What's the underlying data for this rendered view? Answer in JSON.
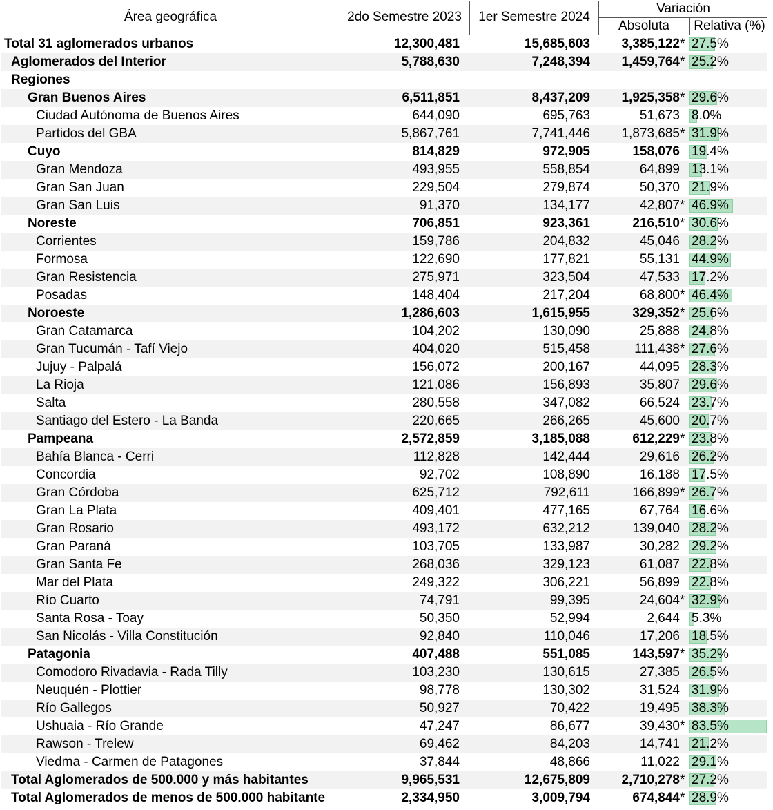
{
  "header": {
    "area": "Área geográfica",
    "col1": "2do Semestre 2023",
    "col2": "1er Semestre 2024",
    "variacion": "Variación",
    "absoluta": "Absoluta",
    "relativa": "Relativa (%)"
  },
  "rows": [
    {
      "name": "Total 31 aglomerados urbanos",
      "v1": "12,300,481",
      "v2": "15,685,603",
      "abs": "3,385,122",
      "star": "*",
      "rel": "27.5%",
      "pct": 27.5,
      "bold": true,
      "indent": 0
    },
    {
      "name": "Aglomerados del Interior",
      "v1": "5,788,630",
      "v2": "7,248,394",
      "abs": "1,459,764",
      "star": "*",
      "rel": "25.2%",
      "pct": 25.2,
      "bold": true,
      "indent": 1
    },
    {
      "name": "Regiones",
      "v1": "",
      "v2": "",
      "abs": "",
      "star": "",
      "rel": "",
      "pct": 0,
      "bold": true,
      "indent": 1
    },
    {
      "name": "Gran Buenos Aires",
      "v1": "6,511,851",
      "v2": "8,437,209",
      "abs": "1,925,358",
      "star": "*",
      "rel": "29.6%",
      "pct": 29.6,
      "bold": true,
      "indent": 2
    },
    {
      "name": "Ciudad Autónoma de Buenos Aires",
      "v1": "644,090",
      "v2": "695,763",
      "abs": "51,673",
      "star": "",
      "rel": "8.0%",
      "pct": 8.0,
      "bold": false,
      "indent": 3
    },
    {
      "name": "Partidos del GBA",
      "v1": "5,867,761",
      "v2": "7,741,446",
      "abs": "1,873,685",
      "star": "*",
      "rel": "31.9%",
      "pct": 31.9,
      "bold": false,
      "indent": 3
    },
    {
      "name": "Cuyo",
      "v1": "814,829",
      "v2": "972,905",
      "abs": "158,076",
      "star": "",
      "rel": "19.4%",
      "pct": 19.4,
      "bold": true,
      "indent": 2
    },
    {
      "name": "Gran Mendoza",
      "v1": "493,955",
      "v2": "558,854",
      "abs": "64,899",
      "star": "",
      "rel": "13.1%",
      "pct": 13.1,
      "bold": false,
      "indent": 3
    },
    {
      "name": "Gran San Juan",
      "v1": "229,504",
      "v2": "279,874",
      "abs": "50,370",
      "star": "",
      "rel": "21.9%",
      "pct": 21.9,
      "bold": false,
      "indent": 3
    },
    {
      "name": "Gran San Luis",
      "v1": "91,370",
      "v2": "134,177",
      "abs": "42,807",
      "star": "*",
      "rel": "46.9%",
      "pct": 46.9,
      "bold": false,
      "indent": 3
    },
    {
      "name": "Noreste",
      "v1": "706,851",
      "v2": "923,361",
      "abs": "216,510",
      "star": "*",
      "rel": "30.6%",
      "pct": 30.6,
      "bold": true,
      "indent": 2
    },
    {
      "name": "Corrientes",
      "v1": "159,786",
      "v2": "204,832",
      "abs": "45,046",
      "star": "",
      "rel": "28.2%",
      "pct": 28.2,
      "bold": false,
      "indent": 3
    },
    {
      "name": "Formosa",
      "v1": "122,690",
      "v2": "177,821",
      "abs": "55,131",
      "star": "",
      "rel": "44.9%",
      "pct": 44.9,
      "bold": false,
      "indent": 3
    },
    {
      "name": "Gran Resistencia",
      "v1": "275,971",
      "v2": "323,504",
      "abs": "47,533",
      "star": "",
      "rel": "17.2%",
      "pct": 17.2,
      "bold": false,
      "indent": 3
    },
    {
      "name": "Posadas",
      "v1": "148,404",
      "v2": "217,204",
      "abs": "68,800",
      "star": "*",
      "rel": "46.4%",
      "pct": 46.4,
      "bold": false,
      "indent": 3
    },
    {
      "name": "Noroeste",
      "v1": "1,286,603",
      "v2": "1,615,955",
      "abs": "329,352",
      "star": "*",
      "rel": "25.6%",
      "pct": 25.6,
      "bold": true,
      "indent": 2
    },
    {
      "name": "Gran Catamarca",
      "v1": "104,202",
      "v2": "130,090",
      "abs": "25,888",
      "star": "",
      "rel": "24.8%",
      "pct": 24.8,
      "bold": false,
      "indent": 3
    },
    {
      "name": "Gran Tucumán - Tafí Viejo",
      "v1": "404,020",
      "v2": "515,458",
      "abs": "111,438",
      "star": "*",
      "rel": "27.6%",
      "pct": 27.6,
      "bold": false,
      "indent": 3
    },
    {
      "name": "Jujuy - Palpalá",
      "v1": "156,072",
      "v2": "200,167",
      "abs": "44,095",
      "star": "",
      "rel": "28.3%",
      "pct": 28.3,
      "bold": false,
      "indent": 3
    },
    {
      "name": "La Rioja",
      "v1": "121,086",
      "v2": "156,893",
      "abs": "35,807",
      "star": "",
      "rel": "29.6%",
      "pct": 29.6,
      "bold": false,
      "indent": 3
    },
    {
      "name": "Salta",
      "v1": "280,558",
      "v2": "347,082",
      "abs": "66,524",
      "star": "",
      "rel": "23.7%",
      "pct": 23.7,
      "bold": false,
      "indent": 3
    },
    {
      "name": "Santiago del Estero - La Banda",
      "v1": "220,665",
      "v2": "266,265",
      "abs": "45,600",
      "star": "",
      "rel": "20.7%",
      "pct": 20.7,
      "bold": false,
      "indent": 3
    },
    {
      "name": "Pampeana",
      "v1": "2,572,859",
      "v2": "3,185,088",
      "abs": "612,229",
      "star": "*",
      "rel": "23.8%",
      "pct": 23.8,
      "bold": true,
      "indent": 2
    },
    {
      "name": "Bahía Blanca - Cerri",
      "v1": "112,828",
      "v2": "142,444",
      "abs": "29,616",
      "star": "",
      "rel": "26.2%",
      "pct": 26.2,
      "bold": false,
      "indent": 3
    },
    {
      "name": "Concordia",
      "v1": "92,702",
      "v2": "108,890",
      "abs": "16,188",
      "star": "",
      "rel": "17.5%",
      "pct": 17.5,
      "bold": false,
      "indent": 3
    },
    {
      "name": "Gran Córdoba",
      "v1": "625,712",
      "v2": "792,611",
      "abs": "166,899",
      "star": "*",
      "rel": "26.7%",
      "pct": 26.7,
      "bold": false,
      "indent": 3
    },
    {
      "name": "Gran La Plata",
      "v1": "409,401",
      "v2": "477,165",
      "abs": "67,764",
      "star": "",
      "rel": "16.6%",
      "pct": 16.6,
      "bold": false,
      "indent": 3
    },
    {
      "name": "Gran Rosario",
      "v1": "493,172",
      "v2": "632,212",
      "abs": "139,040",
      "star": "",
      "rel": "28.2%",
      "pct": 28.2,
      "bold": false,
      "indent": 3
    },
    {
      "name": "Gran Paraná",
      "v1": "103,705",
      "v2": "133,987",
      "abs": "30,282",
      "star": "",
      "rel": "29.2%",
      "pct": 29.2,
      "bold": false,
      "indent": 3
    },
    {
      "name": "Gran Santa Fe",
      "v1": "268,036",
      "v2": "329,123",
      "abs": "61,087",
      "star": "",
      "rel": "22.8%",
      "pct": 22.8,
      "bold": false,
      "indent": 3
    },
    {
      "name": "Mar del Plata",
      "v1": "249,322",
      "v2": "306,221",
      "abs": "56,899",
      "star": "",
      "rel": "22.8%",
      "pct": 22.8,
      "bold": false,
      "indent": 3
    },
    {
      "name": "Río Cuarto",
      "v1": "74,791",
      "v2": "99,395",
      "abs": "24,604",
      "star": "*",
      "rel": "32.9%",
      "pct": 32.9,
      "bold": false,
      "indent": 3
    },
    {
      "name": "Santa Rosa - Toay",
      "v1": "50,350",
      "v2": "52,994",
      "abs": "2,644",
      "star": "",
      "rel": "5.3%",
      "pct": 5.3,
      "bold": false,
      "indent": 3
    },
    {
      "name": "San Nicolás - Villa Constitución",
      "v1": "92,840",
      "v2": "110,046",
      "abs": "17,206",
      "star": "",
      "rel": "18.5%",
      "pct": 18.5,
      "bold": false,
      "indent": 3
    },
    {
      "name": "Patagonia",
      "v1": "407,488",
      "v2": "551,085",
      "abs": "143,597",
      "star": "*",
      "rel": "35.2%",
      "pct": 35.2,
      "bold": true,
      "indent": 2
    },
    {
      "name": "Comodoro Rivadavia - Rada Tilly",
      "v1": "103,230",
      "v2": "130,615",
      "abs": "27,385",
      "star": "",
      "rel": "26.5%",
      "pct": 26.5,
      "bold": false,
      "indent": 3
    },
    {
      "name": "Neuquén - Plottier",
      "v1": "98,778",
      "v2": "130,302",
      "abs": "31,524",
      "star": "",
      "rel": "31.9%",
      "pct": 31.9,
      "bold": false,
      "indent": 3
    },
    {
      "name": "Río Gallegos",
      "v1": "50,927",
      "v2": "70,422",
      "abs": "19,495",
      "star": "",
      "rel": "38.3%",
      "pct": 38.3,
      "bold": false,
      "indent": 3
    },
    {
      "name": "Ushuaia - Río Grande",
      "v1": "47,247",
      "v2": "86,677",
      "abs": "39,430",
      "star": "*",
      "rel": "83.5%",
      "pct": 83.5,
      "bold": false,
      "indent": 3
    },
    {
      "name": "Rawson - Trelew",
      "v1": "69,462",
      "v2": "84,203",
      "abs": "14,741",
      "star": "",
      "rel": "21.2%",
      "pct": 21.2,
      "bold": false,
      "indent": 3
    },
    {
      "name": "Viedma - Carmen de Patagones",
      "v1": "37,844",
      "v2": "48,866",
      "abs": "11,022",
      "star": "",
      "rel": "29.1%",
      "pct": 29.1,
      "bold": false,
      "indent": 3
    },
    {
      "name": "Total Aglomerados de 500.000 y más habitantes",
      "v1": "9,965,531",
      "v2": "12,675,809",
      "abs": "2,710,278",
      "star": "*",
      "rel": "27.2%",
      "pct": 27.2,
      "bold": true,
      "indent": 1
    },
    {
      "name": "Total Aglomerados de menos de 500.000 habitante",
      "v1": "2,334,950",
      "v2": "3,009,794",
      "abs": "674,844",
      "star": "*",
      "rel": "28.9%",
      "pct": 28.9,
      "bold": true,
      "indent": 1
    }
  ],
  "colors": {
    "bar_fill": "#9ddcb3",
    "bar_border": "#6cc58c",
    "row_shade": "#f2f2f2"
  }
}
